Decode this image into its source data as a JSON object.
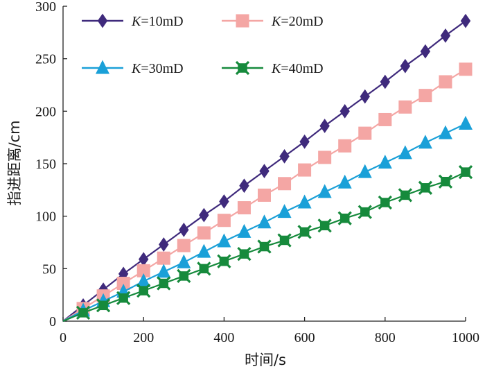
{
  "chart_data": {
    "type": "line",
    "title": "",
    "xlabel": "时间/s",
    "ylabel": "指进距离/cm",
    "xlim": [
      0,
      1000
    ],
    "ylim": [
      0,
      300
    ],
    "xticks": [
      0,
      200,
      400,
      600,
      800,
      1000
    ],
    "yticks": [
      0,
      50,
      100,
      150,
      200,
      250,
      300
    ],
    "xtick_labels": [
      "0",
      "200",
      "400",
      "600",
      "800",
      "1000"
    ],
    "ytick_labels": [
      "0",
      "50",
      "100",
      "150",
      "200",
      "250",
      "300"
    ],
    "legend_position": "top-left",
    "x": [
      50,
      100,
      150,
      200,
      250,
      300,
      350,
      400,
      450,
      500,
      550,
      600,
      650,
      700,
      750,
      800,
      850,
      900,
      950,
      1000
    ],
    "series": [
      {
        "name": "K=10mD",
        "legend_italic": "K",
        "legend_rest": "=10mD",
        "color": "#3f2a7c",
        "marker": "diamond",
        "values": [
          15,
          30,
          45,
          59,
          73,
          87,
          101,
          114,
          129,
          143,
          157,
          171,
          186,
          200,
          214,
          228,
          243,
          257,
          272,
          286
        ]
      },
      {
        "name": "K=20mD",
        "legend_italic": "K",
        "legend_rest": "=20mD",
        "color": "#f4a6a4",
        "marker": "square",
        "values": [
          12,
          24,
          36,
          48,
          60,
          72,
          84,
          96,
          108,
          120,
          131,
          144,
          156,
          167,
          179,
          192,
          204,
          215,
          228,
          240
        ]
      },
      {
        "name": "K=30mD",
        "legend_italic": "K",
        "legend_rest": "=30mD",
        "color": "#1aa0d8",
        "marker": "triangle",
        "values": [
          10,
          19,
          28,
          38,
          47,
          56,
          66,
          76,
          85,
          94,
          104,
          113,
          123,
          132,
          142,
          151,
          160,
          170,
          179,
          188
        ]
      },
      {
        "name": "K=40mD",
        "legend_italic": "K",
        "legend_rest": "=40mD",
        "color": "#168a3c",
        "marker": "square-x",
        "values": [
          8,
          15,
          22,
          29,
          36,
          43,
          50,
          57,
          64,
          71,
          77,
          85,
          91,
          98,
          104,
          113,
          120,
          127,
          133,
          142
        ]
      }
    ]
  }
}
